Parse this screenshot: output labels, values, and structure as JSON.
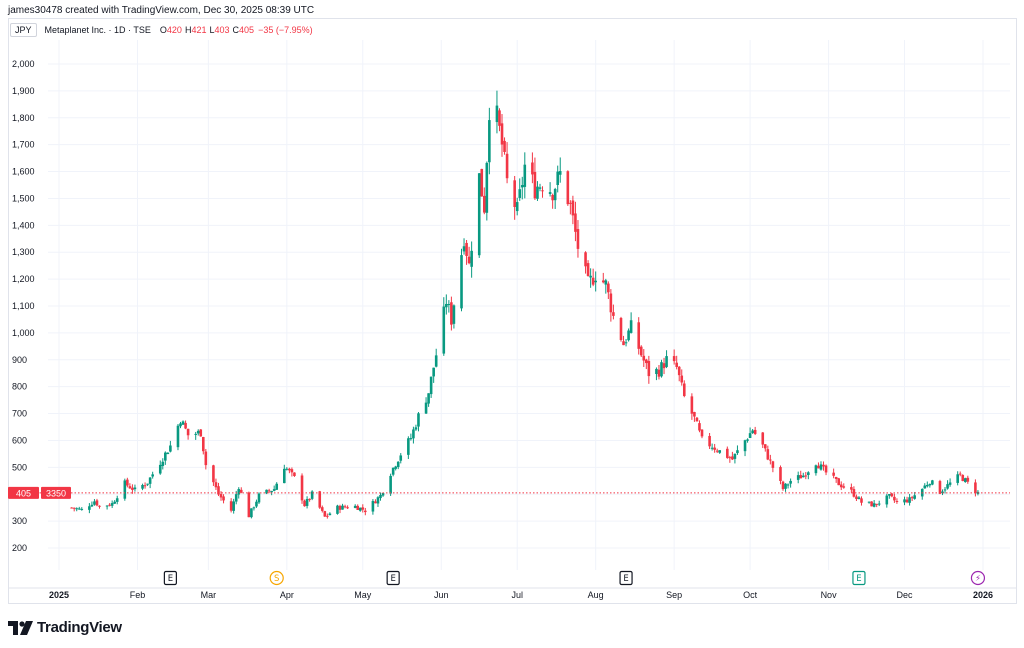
{
  "header": {
    "created_line": "james30478 created with TradingView.com, Dec 30, 2025 08:39 UTC"
  },
  "legend": {
    "currency": "JPY",
    "symbol": "Metaplanet Inc. · 1D · TSE",
    "o_key": "O",
    "o_val": "420",
    "h_key": "H",
    "h_val": "421",
    "l_key": "L",
    "l_val": "403",
    "c_key": "C",
    "c_val": "405",
    "change": "−35 (−7.95%)"
  },
  "price_tag": {
    "price": "405",
    "extra": "3350"
  },
  "footer": {
    "brand": "TradingView"
  },
  "colors": {
    "up": "#089981",
    "down": "#f23645",
    "grid": "#f0f3fa",
    "marker_e": "#131722",
    "marker_s": "#f7a600",
    "marker_bolt": "#9c27b0",
    "marker_e_green": "#089981"
  },
  "chart_data": {
    "type": "candlestick",
    "y_ticks": [
      "200",
      "300",
      "400",
      "500",
      "600",
      "700",
      "800",
      "900",
      "1,000",
      "1,100",
      "1,200",
      "1,300",
      "1,400",
      "1,500",
      "1,600",
      "1,700",
      "1,800",
      "1,900",
      "2,000"
    ],
    "ylim": [
      150,
      2050
    ],
    "grid": true,
    "x_labels": [
      {
        "label": "2025",
        "date": "2025-01-01",
        "bold": true
      },
      {
        "label": "Feb",
        "date": "2025-02-01"
      },
      {
        "label": "Mar",
        "date": "2025-03-01"
      },
      {
        "label": "Apr",
        "date": "2025-04-01"
      },
      {
        "label": "May",
        "date": "2025-05-01"
      },
      {
        "label": "Jun",
        "date": "2025-06-01"
      },
      {
        "label": "Jul",
        "date": "2025-07-01"
      },
      {
        "label": "Aug",
        "date": "2025-08-01"
      },
      {
        "label": "Sep",
        "date": "2025-09-01"
      },
      {
        "label": "Oct",
        "date": "2025-10-01"
      },
      {
        "label": "Nov",
        "date": "2025-11-01"
      },
      {
        "label": "Dec",
        "date": "2025-12-01"
      },
      {
        "label": "2026",
        "date": "2026-01-01",
        "bold": true
      }
    ],
    "events": [
      {
        "icon": "E",
        "date": "2025-02-14",
        "kind": "earnings"
      },
      {
        "icon": "S",
        "date": "2025-03-28",
        "kind": "split"
      },
      {
        "icon": "E",
        "date": "2025-05-13",
        "kind": "earnings"
      },
      {
        "icon": "E",
        "date": "2025-08-13",
        "kind": "earnings"
      },
      {
        "icon": "E",
        "date": "2025-11-13",
        "kind": "earnings-upcoming"
      },
      {
        "icon": "⚡",
        "date": "2025-12-30",
        "kind": "event"
      }
    ],
    "last_price": 405,
    "anchors": [
      [
        "2025-01-06",
        350
      ],
      [
        "2025-01-10",
        342
      ],
      [
        "2025-01-15",
        375
      ],
      [
        "2025-01-17",
        355
      ],
      [
        "2025-01-22",
        365
      ],
      [
        "2025-01-27",
        440
      ],
      [
        "2025-01-31",
        415
      ],
      [
        "2025-02-05",
        445
      ],
      [
        "2025-02-10",
        520
      ],
      [
        "2025-02-14",
        580
      ],
      [
        "2025-02-18",
        680
      ],
      [
        "2025-02-21",
        620
      ],
      [
        "2025-02-26",
        630
      ],
      [
        "2025-02-28",
        510
      ],
      [
        "2025-03-05",
        400
      ],
      [
        "2025-03-10",
        340
      ],
      [
        "2025-03-13",
        430
      ],
      [
        "2025-03-17",
        320
      ],
      [
        "2025-03-21",
        395
      ],
      [
        "2025-03-27",
        420
      ],
      [
        "2025-03-31",
        505
      ],
      [
        "2025-04-04",
        460
      ],
      [
        "2025-04-08",
        360
      ],
      [
        "2025-04-11",
        400
      ],
      [
        "2025-04-16",
        315
      ],
      [
        "2025-04-21",
        350
      ],
      [
        "2025-04-28",
        355
      ],
      [
        "2025-05-02",
        340
      ],
      [
        "2025-05-08",
        395
      ],
      [
        "2025-05-12",
        480
      ],
      [
        "2025-05-16",
        550
      ],
      [
        "2025-05-20",
        610
      ],
      [
        "2025-05-23",
        690
      ],
      [
        "2025-05-27",
        780
      ],
      [
        "2025-05-30",
        920
      ],
      [
        "2025-06-03",
        1120
      ],
      [
        "2025-06-05",
        1050
      ],
      [
        "2025-06-10",
        1360
      ],
      [
        "2025-06-12",
        1250
      ],
      [
        "2025-06-16",
        1580
      ],
      [
        "2025-06-18",
        1470
      ],
      [
        "2025-06-20",
        1840
      ],
      [
        "2025-06-23",
        1800
      ],
      [
        "2025-06-25",
        1700
      ],
      [
        "2025-06-27",
        1560
      ],
      [
        "2025-07-01",
        1450
      ],
      [
        "2025-07-04",
        1620
      ],
      [
        "2025-07-08",
        1540
      ],
      [
        "2025-07-11",
        1560
      ],
      [
        "2025-07-15",
        1530
      ],
      [
        "2025-07-18",
        1590
      ],
      [
        "2025-07-22",
        1470
      ],
      [
        "2025-07-25",
        1320
      ],
      [
        "2025-07-29",
        1180
      ],
      [
        "2025-08-01",
        1220
      ],
      [
        "2025-08-05",
        1180
      ],
      [
        "2025-08-08",
        1060
      ],
      [
        "2025-08-12",
        960
      ],
      [
        "2025-08-15",
        1020
      ],
      [
        "2025-08-19",
        920
      ],
      [
        "2025-08-22",
        850
      ],
      [
        "2025-08-26",
        860
      ],
      [
        "2025-08-29",
        900
      ],
      [
        "2025-09-02",
        870
      ],
      [
        "2025-09-05",
        760
      ],
      [
        "2025-09-09",
        680
      ],
      [
        "2025-09-12",
        600
      ],
      [
        "2025-09-16",
        580
      ],
      [
        "2025-09-19",
        560
      ],
      [
        "2025-09-24",
        530
      ],
      [
        "2025-09-29",
        600
      ],
      [
        "2025-10-02",
        640
      ],
      [
        "2025-10-06",
        580
      ],
      [
        "2025-10-09",
        520
      ],
      [
        "2025-10-14",
        420
      ],
      [
        "2025-10-17",
        450
      ],
      [
        "2025-10-22",
        470
      ],
      [
        "2025-10-27",
        520
      ],
      [
        "2025-10-31",
        480
      ],
      [
        "2025-11-05",
        440
      ],
      [
        "2025-11-10",
        410
      ],
      [
        "2025-11-14",
        370
      ],
      [
        "2025-11-19",
        360
      ],
      [
        "2025-11-25",
        390
      ],
      [
        "2025-11-28",
        370
      ],
      [
        "2025-12-03",
        380
      ],
      [
        "2025-12-08",
        420
      ],
      [
        "2025-12-11",
        450
      ],
      [
        "2025-12-15",
        410
      ],
      [
        "2025-12-19",
        440
      ],
      [
        "2025-12-23",
        470
      ],
      [
        "2025-12-26",
        440
      ],
      [
        "2025-12-30",
        405
      ]
    ]
  }
}
